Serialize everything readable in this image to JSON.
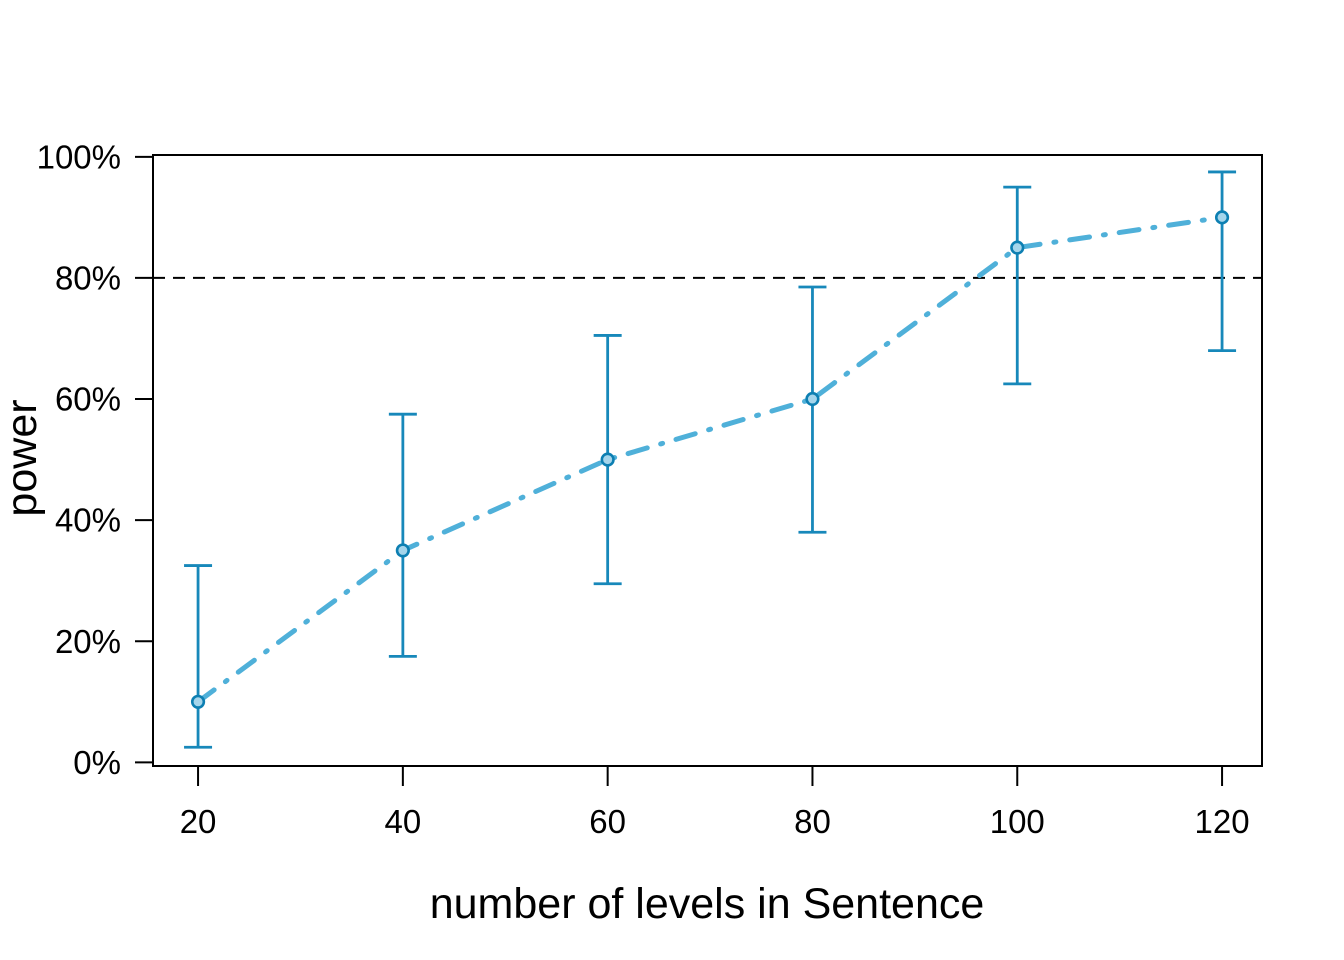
{
  "figure": {
    "background": "#FFFFFF",
    "kind": "r-base-graphics-power-curve"
  },
  "chart_data": {
    "type": "line",
    "title": "",
    "xlabel": "number of levels in Sentence",
    "ylabel": "power",
    "x": [
      20,
      40,
      60,
      80,
      100,
      120
    ],
    "series": [
      {
        "name": "power",
        "values": [
          10,
          35,
          50,
          60,
          85,
          90
        ],
        "ci_lower": [
          2.5,
          17.5,
          29.5,
          38,
          62.5,
          68
        ],
        "ci_upper": [
          32.5,
          57.5,
          70.5,
          78.5,
          95,
          97.5
        ],
        "line_style": "dotdash",
        "marker": "circle"
      }
    ],
    "reference_line": {
      "y": 80,
      "style": "dashed",
      "color": "#000000"
    },
    "x_ticks": {
      "values": [
        20,
        40,
        60,
        80,
        100,
        120
      ],
      "labels": [
        "20",
        "40",
        "60",
        "80",
        "100",
        "120"
      ]
    },
    "y_ticks": {
      "values": [
        0,
        20,
        40,
        60,
        80,
        100
      ],
      "labels": [
        "0%",
        "20%",
        "40%",
        "60%",
        "80%",
        "100%"
      ]
    },
    "xlim": [
      15.6,
      123.9
    ],
    "ylim": [
      -0.6,
      100.3
    ],
    "grid": false,
    "legend": "none",
    "colors": {
      "series_line": "#4FB0D9",
      "error_bar": "#1788BA",
      "marker_fill": "#A5D5EB",
      "marker_stroke": "#0D7FB2",
      "axis": "#000000",
      "reference_line": "#000000",
      "background": "#FFFFFF"
    }
  }
}
